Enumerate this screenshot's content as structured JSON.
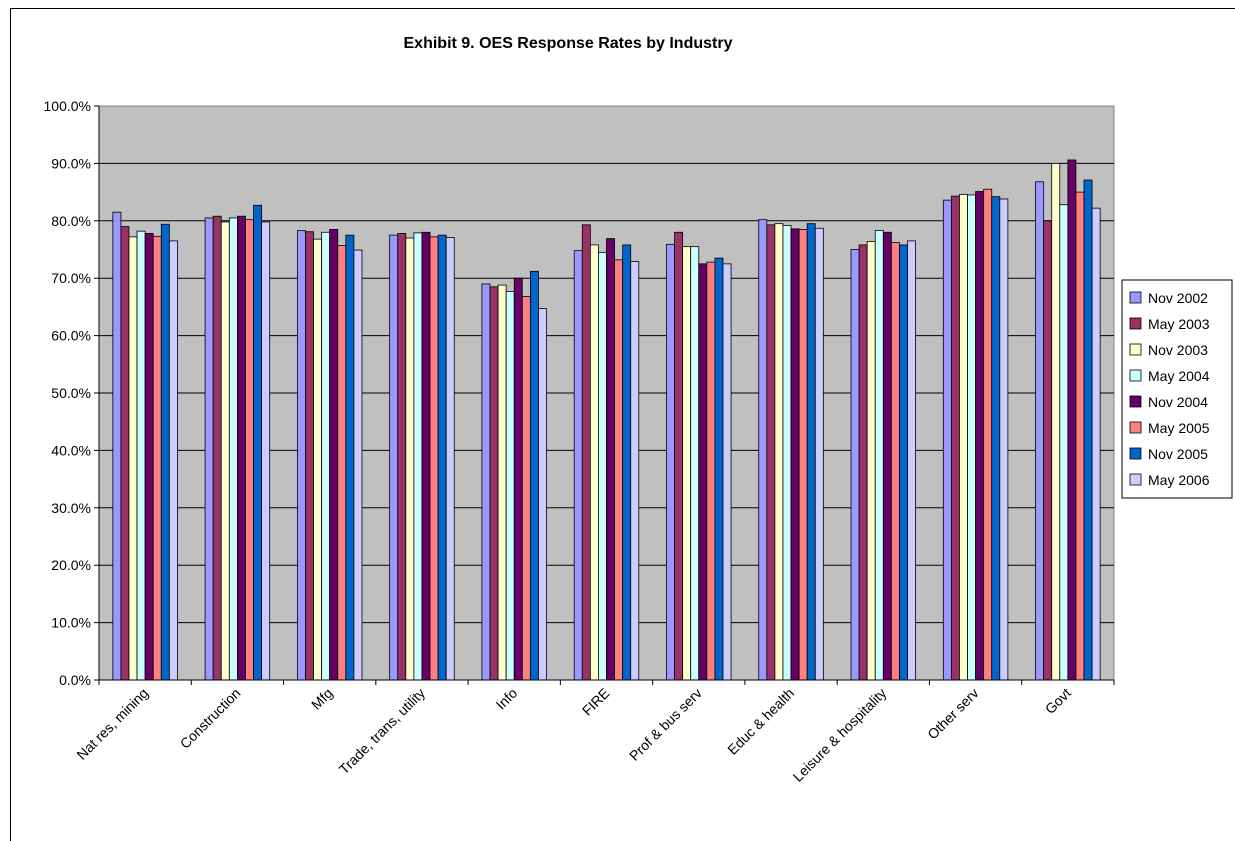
{
  "chart_data": {
    "type": "bar",
    "title": "Exhibit 9.  OES Response Rates by Industry",
    "xlabel": "",
    "ylabel": "",
    "ylim": [
      0,
      100
    ],
    "y_ticks": [
      "0.0%",
      "10.0%",
      "20.0%",
      "30.0%",
      "40.0%",
      "50.0%",
      "60.0%",
      "70.0%",
      "80.0%",
      "90.0%",
      "100.0%"
    ],
    "grid": true,
    "legend_position": "right",
    "plot_background": "#c0c0c0",
    "categories": [
      "Nat res, mining",
      "Construction",
      "Mfg",
      "Trade, trans, utility",
      "Info",
      "FIRE",
      "Prof & bus serv",
      "Educ & health",
      "Leisure & hospitality",
      "Other serv",
      "Govt"
    ],
    "series": [
      {
        "name": "Nov 2002",
        "color": "#9999ff",
        "values": [
          81.5,
          80.5,
          78.3,
          77.5,
          69.0,
          74.8,
          75.9,
          80.2,
          75.0,
          83.6,
          86.8
        ]
      },
      {
        "name": "May 2003",
        "color": "#993366",
        "values": [
          79.0,
          80.8,
          78.1,
          77.8,
          68.5,
          79.3,
          78.0,
          79.3,
          75.8,
          84.3,
          80.0
        ]
      },
      {
        "name": "Nov 2003",
        "color": "#ffffcc",
        "values": [
          77.2,
          79.8,
          76.8,
          77.0,
          68.8,
          75.8,
          75.5,
          79.5,
          76.4,
          84.6,
          90.0
        ]
      },
      {
        "name": "May 2004",
        "color": "#ccffff",
        "values": [
          78.2,
          80.5,
          78.0,
          77.9,
          67.7,
          74.5,
          75.5,
          79.2,
          78.3,
          84.5,
          82.8
        ]
      },
      {
        "name": "Nov 2004",
        "color": "#660066",
        "values": [
          77.8,
          80.8,
          78.5,
          78.0,
          70.0,
          76.9,
          72.5,
          78.6,
          78.0,
          85.1,
          90.6
        ]
      },
      {
        "name": "May 2005",
        "color": "#ff8080",
        "values": [
          77.3,
          80.2,
          75.7,
          77.2,
          66.8,
          73.2,
          72.8,
          78.5,
          76.2,
          85.5,
          85.0
        ]
      },
      {
        "name": "Nov 2005",
        "color": "#0066cc",
        "values": [
          79.4,
          82.7,
          77.5,
          77.5,
          71.2,
          75.8,
          73.5,
          79.5,
          75.8,
          84.2,
          87.1
        ]
      },
      {
        "name": "May 2006",
        "color": "#ccccff",
        "values": [
          76.5,
          79.8,
          74.9,
          77.1,
          64.7,
          72.9,
          72.5,
          78.7,
          76.5,
          83.8,
          82.2
        ]
      }
    ]
  }
}
